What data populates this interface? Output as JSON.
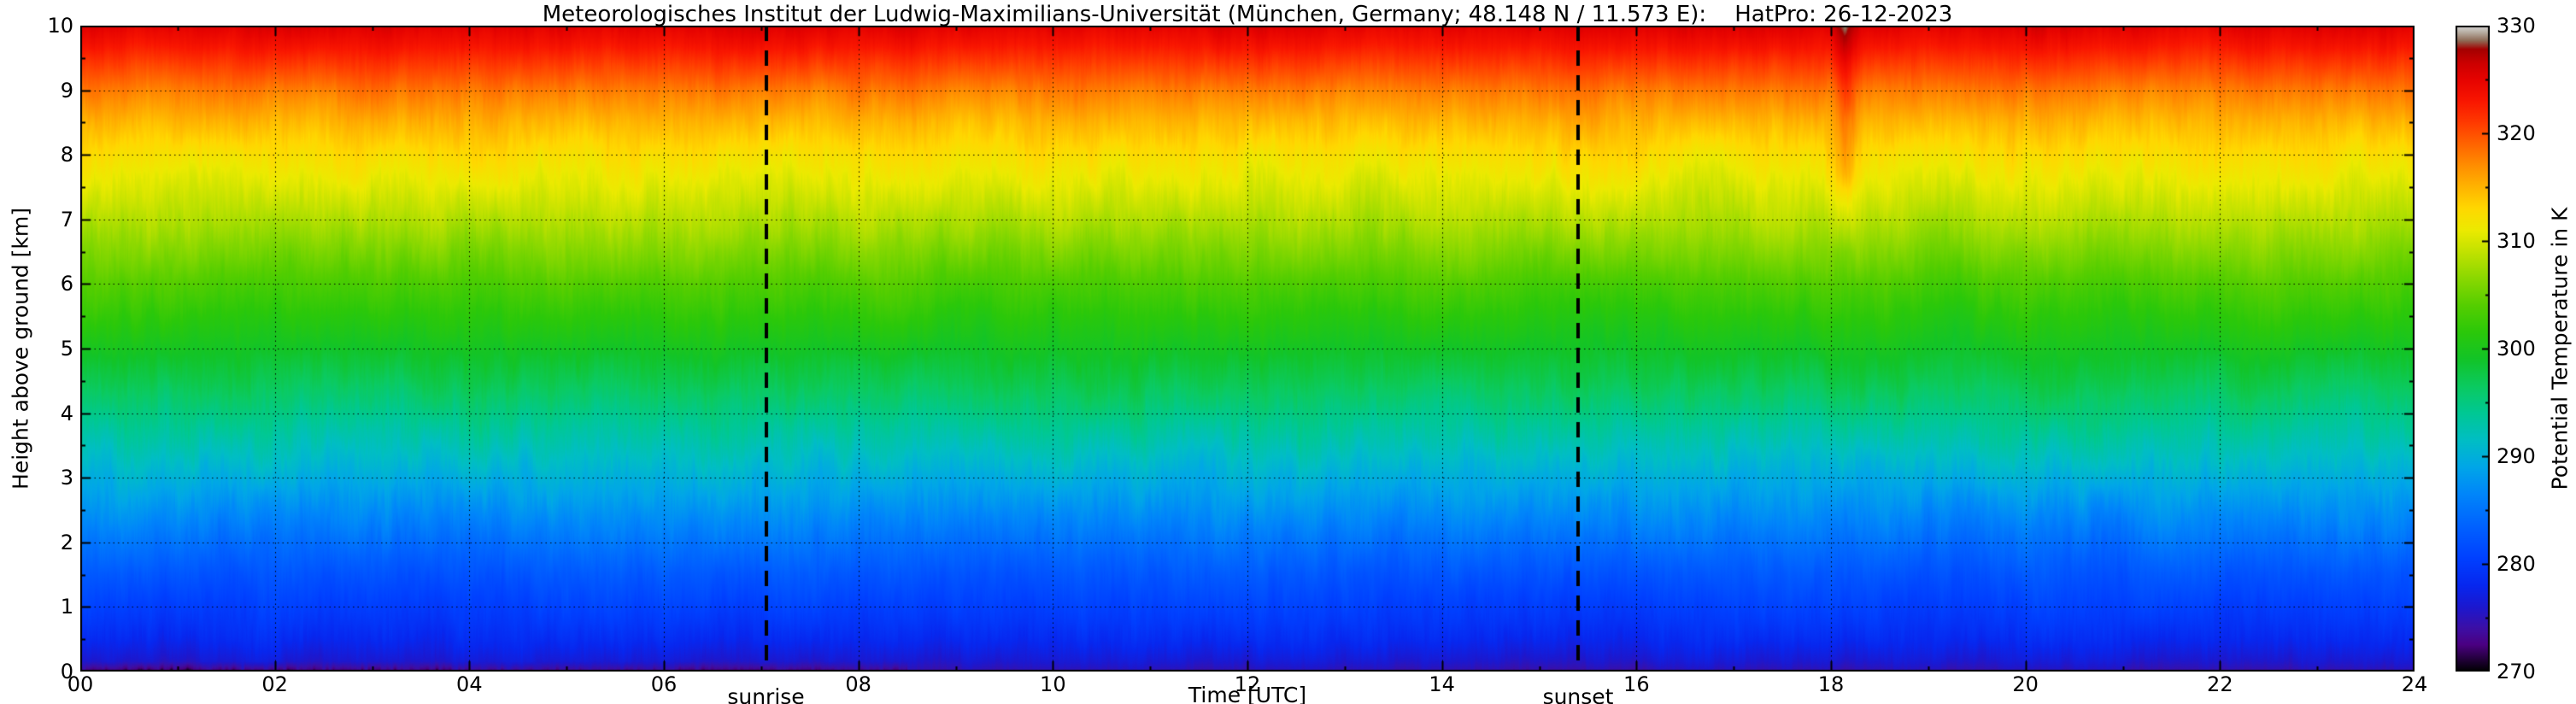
{
  "chart_data": {
    "type": "heatmap",
    "title": "Meteorologisches Institut der Ludwig-Maximilians-Universität (München, Germany; 48.148 N / 11.573 E):    HatPro: 26-12-2023",
    "xlabel": "Time [UTC]",
    "ylabel": "Height above ground [km]",
    "colorbar_label": "Potential Temperature in K",
    "x_range": [
      0,
      24
    ],
    "x_tick_values": [
      0,
      2,
      4,
      6,
      8,
      10,
      12,
      14,
      16,
      18,
      20,
      22,
      24
    ],
    "x_tick_labels": [
      "00",
      "02",
      "04",
      "06",
      "08",
      "10",
      "12",
      "14",
      "16",
      "18",
      "20",
      "22",
      "24"
    ],
    "y_range": [
      0,
      10
    ],
    "y_tick_values": [
      0,
      1,
      2,
      3,
      4,
      5,
      6,
      7,
      8,
      9,
      10
    ],
    "y_tick_labels": [
      "0",
      "1",
      "2",
      "3",
      "4",
      "5",
      "6",
      "7",
      "8",
      "9",
      "10"
    ],
    "colorbar_range": [
      270,
      330
    ],
    "colorbar_tick_values": [
      270,
      280,
      290,
      300,
      310,
      320,
      330
    ],
    "colorbar_tick_labels": [
      "270",
      "280",
      "290",
      "300",
      "310",
      "320",
      "330"
    ],
    "grid": {
      "x_step_hours": 2,
      "y_step_km": 1,
      "style": "dotted"
    },
    "annotations": [
      {
        "label": "sunrise",
        "time_utc": 7.05
      },
      {
        "label": "sunset",
        "time_utc": 15.4
      }
    ],
    "mean_profile": {
      "height_km": [
        0,
        0.05,
        0.15,
        0.3,
        0.5,
        0.75,
        1,
        1.25,
        1.5,
        2,
        2.5,
        3,
        3.5,
        4,
        4.5,
        5,
        5.5,
        6,
        6.5,
        7,
        7.5,
        8,
        8.5,
        9,
        9.4,
        9.7,
        10
      ],
      "theta_K": [
        274.2,
        275.0,
        276.0,
        277.0,
        278.2,
        279.4,
        280.4,
        281.4,
        282.4,
        284.8,
        287.3,
        289.8,
        292.3,
        294.8,
        297.2,
        299.3,
        301.3,
        303.4,
        305.8,
        308.2,
        310.4,
        312.4,
        314.8,
        317.8,
        320.8,
        323.2,
        325.2
      ]
    },
    "variability": {
      "streak_amplitude_K": 1.0,
      "enhanced_layers_km": [
        [
          2,
          4.5
        ],
        [
          6.5,
          8.5
        ]
      ],
      "seed": 20231226
    },
    "features": [
      {
        "name": "surface-cold-purple-band",
        "time_range_utc": [
          0,
          8.5
        ],
        "height_top_km": 0.15,
        "theta_min_K": 271.5
      },
      {
        "name": "warm-downdraft-streak",
        "time_utc": 18.15,
        "height_range_km": [
          6.5,
          10
        ],
        "theta_anomaly_K": 3.2,
        "width_hours": 0.12
      }
    ],
    "colormap": [
      [
        270.0,
        "#000000"
      ],
      [
        271.0,
        "#1e0033"
      ],
      [
        272.5,
        "#4b0082"
      ],
      [
        274.0,
        "#3d0fa5"
      ],
      [
        276.0,
        "#1c18cf"
      ],
      [
        278.0,
        "#0727ef"
      ],
      [
        280.5,
        "#0040ff"
      ],
      [
        283.5,
        "#0062ff"
      ],
      [
        286.5,
        "#0086fa"
      ],
      [
        289.0,
        "#00a6e8"
      ],
      [
        291.5,
        "#00bec4"
      ],
      [
        294.0,
        "#00c894"
      ],
      [
        296.5,
        "#0bca60"
      ],
      [
        299.0,
        "#12c428"
      ],
      [
        301.5,
        "#2bc80a"
      ],
      [
        304.0,
        "#55ce00"
      ],
      [
        306.5,
        "#8ad800"
      ],
      [
        309.0,
        "#c2e200"
      ],
      [
        311.0,
        "#ecea00"
      ],
      [
        313.0,
        "#ffd800"
      ],
      [
        315.0,
        "#ffb400"
      ],
      [
        317.0,
        "#ff8e00"
      ],
      [
        319.0,
        "#ff6400"
      ],
      [
        321.0,
        "#ff3a00"
      ],
      [
        323.0,
        "#f91600"
      ],
      [
        325.0,
        "#e60300"
      ],
      [
        326.5,
        "#cc0000"
      ],
      [
        327.8,
        "#a40000"
      ],
      [
        328.6,
        "#8e6a55"
      ],
      [
        329.3,
        "#b3a79b"
      ],
      [
        330.0,
        "#d9d9d9"
      ]
    ]
  }
}
